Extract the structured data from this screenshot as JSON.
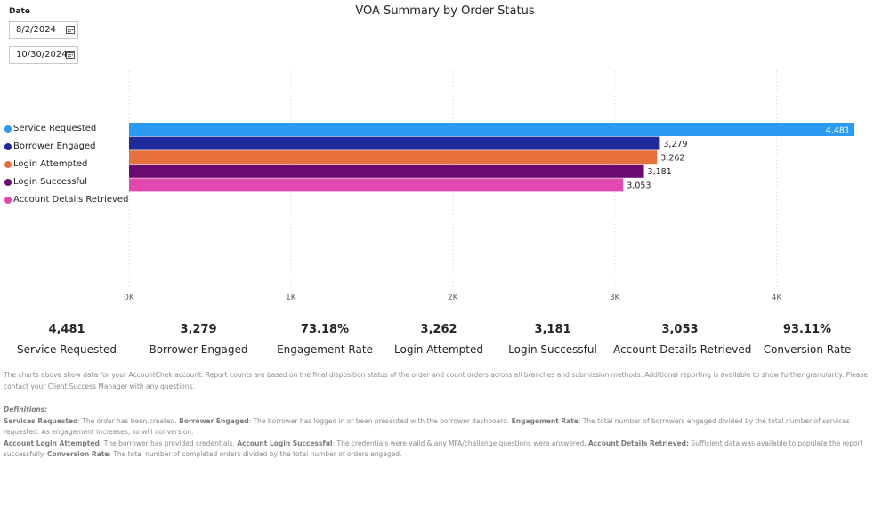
{
  "filters": {
    "label": "Date",
    "start_date": "8/2/2024",
    "end_date": "10/30/2024"
  },
  "chart_title": "VOA Summary by Order Status",
  "chart_data": {
    "type": "bar",
    "orientation": "horizontal",
    "title": "VOA Summary by Order Status",
    "categories": [
      "Service Requested",
      "Borrower Engaged",
      "Login Attempted",
      "Login Successful",
      "Account Details Retrieved"
    ],
    "values": [
      4481,
      3279,
      3262,
      3181,
      3053
    ],
    "value_labels": [
      "4,481",
      "3,279",
      "3,262",
      "3,181",
      "3,053"
    ],
    "colors": [
      "#2b9af3",
      "#1f2b9c",
      "#e8703a",
      "#6b0b70",
      "#e049b0"
    ],
    "xlim": [
      0,
      4481
    ],
    "x_ticks": [
      0,
      1000,
      2000,
      3000,
      4000
    ],
    "x_tick_labels": [
      "0K",
      "1K",
      "2K",
      "3K",
      "4K"
    ],
    "grid": true,
    "legend_position": "left"
  },
  "legend": [
    {
      "label": "Service Requested",
      "color": "#2b9af3"
    },
    {
      "label": "Borrower Engaged",
      "color": "#1f2b9c"
    },
    {
      "label": "Login Attempted",
      "color": "#e8703a"
    },
    {
      "label": "Login Successful",
      "color": "#6b0b70"
    },
    {
      "label": "Account Details Retrieved",
      "color": "#e049b0"
    }
  ],
  "kpis": [
    {
      "value": "4,481",
      "label": "Service Requested"
    },
    {
      "value": "3,279",
      "label": "Borrower Engaged"
    },
    {
      "value": "73.18%",
      "label": "Engagement Rate"
    },
    {
      "value": "3,262",
      "label": "Login Attempted"
    },
    {
      "value": "3,181",
      "label": "Login Successful"
    },
    {
      "value": "3,053",
      "label": "Account Details Retrieved"
    },
    {
      "value": "93.11%",
      "label": "Conversion Rate"
    }
  ],
  "notes": {
    "intro": "The charts above show data for your AccountChek account. Report counts are based on the final disposition status of the order and count orders across all branches and submission methods. Additional reporting is available to show further granularity. Please contact your Client Success Manager with any questions.",
    "definitions_title": "Definitions:",
    "def_services_requested_term": "Services Requested",
    "def_services_requested_text": ": The order has been created. ",
    "def_borrower_engaged_term": "Borrower Engaged",
    "def_borrower_engaged_text": ": The borrower has logged in or been presented with the borrower dashboard. ",
    "def_engagement_rate_term": "Engagement Rate",
    "def_engagement_rate_text": ": The total number of borrowers engaged divided by the total number of services requested. As engagement increases, so will conversion.",
    "def_login_attempted_term": "Account Login Attempted",
    "def_login_attempted_text": ": The borrower has provided credentials. ",
    "def_login_successful_term": "Account Login Successful",
    "def_login_successful_text": ": The credentials were valid & any MFA/challenge questions were answered. ",
    "def_details_retrieved_term": "Account Details Retrieved:",
    "def_details_retrieved_text": " Sufficient data was available to populate the report successfully. ",
    "def_conversion_rate_term": "Conversion Rate",
    "def_conversion_rate_text": ": The total number of completed orders divided by the total number of orders engaged."
  }
}
